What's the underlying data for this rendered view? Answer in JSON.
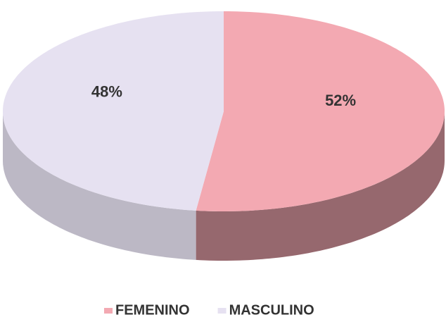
{
  "chart_data": {
    "type": "pie",
    "categories": [
      "FEMENINO",
      "MASCULINO"
    ],
    "values": [
      52,
      48
    ],
    "value_labels": [
      "52%",
      "48%"
    ],
    "colors": [
      "#f3a9b2",
      "#e6e1f1"
    ],
    "legend": "bottom"
  }
}
